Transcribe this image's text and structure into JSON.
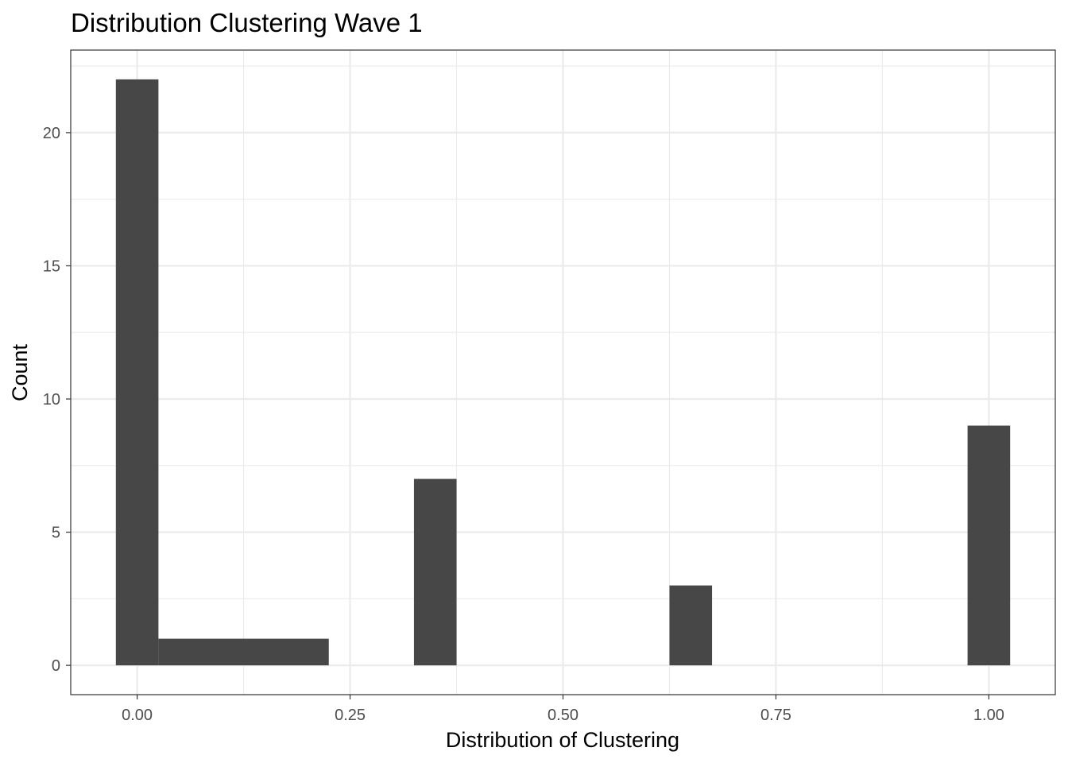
{
  "chart_data": {
    "type": "bar",
    "title": "Distribution Clustering Wave 1",
    "xlabel": "Distribution of Clustering",
    "ylabel": "Count",
    "xlim": [
      -0.078,
      1.078
    ],
    "ylim": [
      -1.1,
      23.1
    ],
    "x_ticks": [
      {
        "value": 0.0,
        "label": "0.00"
      },
      {
        "value": 0.25,
        "label": "0.25"
      },
      {
        "value": 0.5,
        "label": "0.50"
      },
      {
        "value": 0.75,
        "label": "0.75"
      },
      {
        "value": 1.0,
        "label": "1.00"
      }
    ],
    "y_ticks": [
      {
        "value": 0,
        "label": "0"
      },
      {
        "value": 5,
        "label": "5"
      },
      {
        "value": 10,
        "label": "10"
      },
      {
        "value": 15,
        "label": "15"
      },
      {
        "value": 20,
        "label": "20"
      }
    ],
    "x_minor_gridlines": [
      0.125,
      0.375,
      0.625,
      0.875
    ],
    "y_minor_gridlines": [
      2.5,
      7.5,
      12.5,
      17.5,
      22.5
    ],
    "bars": [
      {
        "x0": -0.025,
        "x1": 0.025,
        "value": 22
      },
      {
        "x0": 0.025,
        "x1": 0.225,
        "value": 1
      },
      {
        "x0": 0.325,
        "x1": 0.375,
        "value": 7
      },
      {
        "x0": 0.625,
        "x1": 0.675,
        "value": 3
      },
      {
        "x0": 0.975,
        "x1": 1.025,
        "value": 9
      }
    ],
    "grid": true,
    "bar_color": "#474747",
    "grid_color": "#ebebeb",
    "panel_border_color": "#333333"
  }
}
